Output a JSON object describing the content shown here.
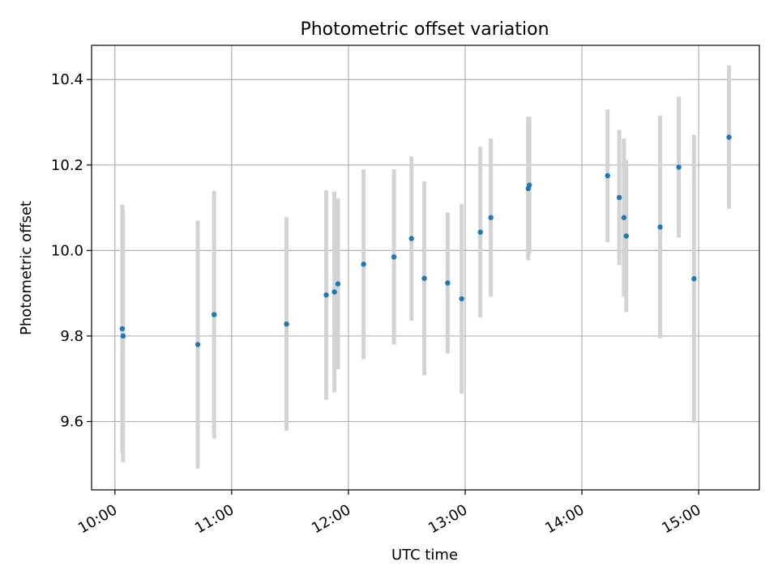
{
  "chart_data": {
    "type": "scatter",
    "title": "Photometric offset variation",
    "xlabel": "UTC time",
    "ylabel": "Photometric offset",
    "x_unit": "hours UTC",
    "xlim": [
      9.8,
      15.52
    ],
    "ylim": [
      9.44,
      10.48
    ],
    "x_ticks": [
      {
        "value": 10,
        "label": "10:00"
      },
      {
        "value": 11,
        "label": "11:00"
      },
      {
        "value": 12,
        "label": "12:00"
      },
      {
        "value": 13,
        "label": "13:00"
      },
      {
        "value": 14,
        "label": "14:00"
      },
      {
        "value": 15,
        "label": "15:00"
      }
    ],
    "y_ticks": [
      {
        "value": 9.6,
        "label": "9.6"
      },
      {
        "value": 9.8,
        "label": "9.8"
      },
      {
        "value": 10.0,
        "label": "10.0"
      },
      {
        "value": 10.2,
        "label": "10.2"
      },
      {
        "value": 10.4,
        "label": "10.4"
      }
    ],
    "grid": true,
    "colors": {
      "point": "#1f77b4",
      "errorbar": "#d3d3d3",
      "grid": "#b0b0b0"
    },
    "points": [
      {
        "x": 10.063,
        "y": 9.817,
        "err": 0.29
      },
      {
        "x": 10.07,
        "y": 9.8,
        "err": 0.295
      },
      {
        "x": 10.71,
        "y": 9.78,
        "err": 0.29
      },
      {
        "x": 10.85,
        "y": 9.85,
        "err": 0.29
      },
      {
        "x": 11.47,
        "y": 9.828,
        "err": 0.25
      },
      {
        "x": 11.81,
        "y": 9.896,
        "err": 0.245
      },
      {
        "x": 11.88,
        "y": 9.903,
        "err": 0.235
      },
      {
        "x": 11.91,
        "y": 9.922,
        "err": 0.2
      },
      {
        "x": 12.13,
        "y": 9.968,
        "err": 0.222
      },
      {
        "x": 12.39,
        "y": 9.985,
        "err": 0.205
      },
      {
        "x": 12.54,
        "y": 10.028,
        "err": 0.192
      },
      {
        "x": 12.65,
        "y": 9.935,
        "err": 0.227
      },
      {
        "x": 12.85,
        "y": 9.924,
        "err": 0.165
      },
      {
        "x": 12.97,
        "y": 9.887,
        "err": 0.222
      },
      {
        "x": 13.13,
        "y": 10.043,
        "err": 0.2
      },
      {
        "x": 13.22,
        "y": 10.077,
        "err": 0.185
      },
      {
        "x": 13.54,
        "y": 10.145,
        "err": 0.168
      },
      {
        "x": 13.55,
        "y": 10.153,
        "err": 0.16
      },
      {
        "x": 14.22,
        "y": 10.175,
        "err": 0.155
      },
      {
        "x": 14.32,
        "y": 10.124,
        "err": 0.158
      },
      {
        "x": 14.36,
        "y": 10.077,
        "err": 0.185
      },
      {
        "x": 14.38,
        "y": 10.034,
        "err": 0.178
      },
      {
        "x": 14.67,
        "y": 10.055,
        "err": 0.26
      },
      {
        "x": 14.83,
        "y": 10.195,
        "err": 0.165
      },
      {
        "x": 14.96,
        "y": 9.934,
        "err": 0.337
      },
      {
        "x": 15.26,
        "y": 10.265,
        "err": 0.168
      }
    ]
  }
}
